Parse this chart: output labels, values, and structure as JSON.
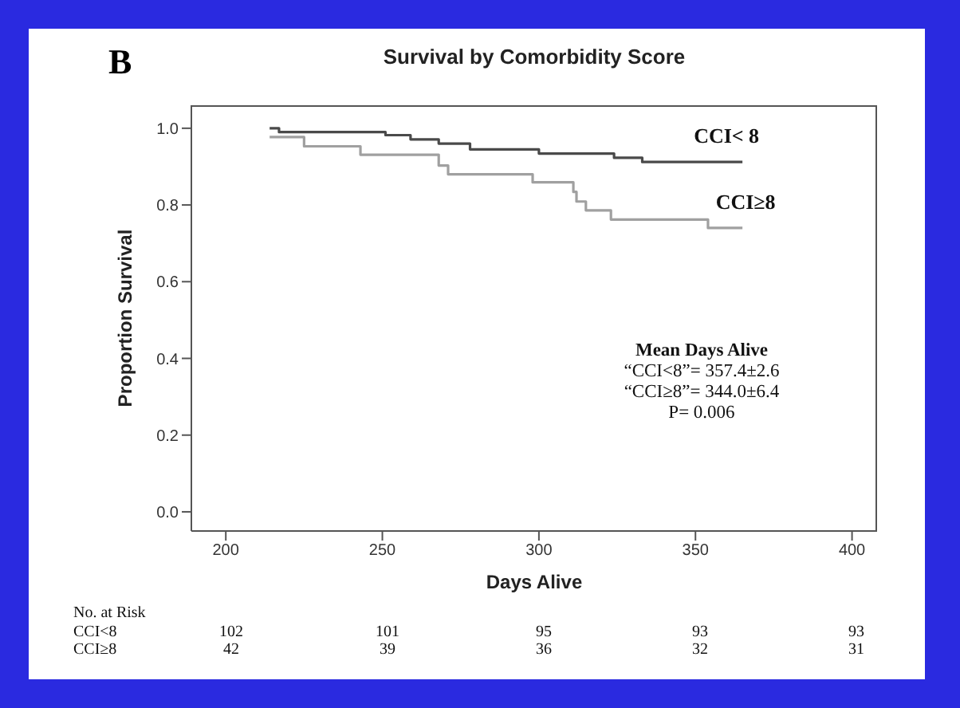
{
  "chart_data": {
    "type": "step",
    "title": "Survival by Comorbidity Score",
    "xlabel": "Days Alive",
    "ylabel": "Proportion Survival",
    "xlim": [
      189,
      408
    ],
    "xticks": [
      200,
      250,
      300,
      350,
      400
    ],
    "ylim": [
      -0.05,
      1.06
    ],
    "yticks": [
      {
        "value": 0,
        "label": "0.0"
      },
      {
        "value": 0.2,
        "label": "0.2"
      },
      {
        "value": 0.4,
        "label": "0.4"
      },
      {
        "value": 0.6,
        "label": "0.6"
      },
      {
        "value": 0.8,
        "label": "0.8"
      },
      {
        "value": 1,
        "label": "1.0"
      }
    ],
    "marker": "none",
    "line_style": "solid",
    "series": [
      {
        "name": "CCI< 8",
        "color": "#4a4a4a",
        "x": [
          214,
          217,
          251,
          259,
          268,
          278,
          300,
          324,
          333,
          365
        ],
        "values": [
          1.0,
          0.99,
          0.982,
          0.971,
          0.96,
          0.945,
          0.934,
          0.923,
          0.912,
          0.912
        ]
      },
      {
        "name": "CCI≥8",
        "color": "#a0a0a0",
        "x": [
          214,
          225,
          243,
          268,
          271,
          298,
          311,
          312,
          315,
          323,
          354,
          365
        ],
        "values": [
          0.977,
          0.953,
          0.931,
          0.903,
          0.88,
          0.859,
          0.834,
          0.809,
          0.786,
          0.762,
          0.74,
          0.74
        ]
      }
    ],
    "annotations": [
      "B",
      "Mean Days Alive",
      "“CCI<8”= 357.4±2.6",
      "“CCI≥8”= 344.0±6.4",
      "P= 0.006",
      "No. at Risk",
      "CCI<8",
      "102",
      "101",
      "95",
      "93",
      "93",
      "CCI≥8",
      "42",
      "39",
      "36",
      "32",
      "31"
    ]
  }
}
